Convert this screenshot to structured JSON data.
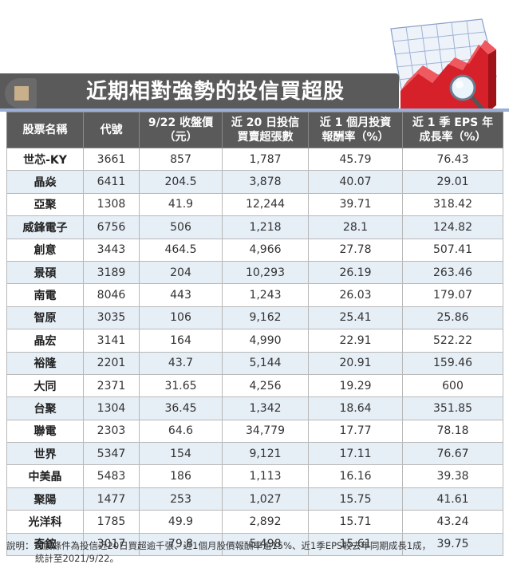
{
  "title": "近期相對強勢的投信買超股",
  "columns": [
    {
      "line1": "股票名稱",
      "line2": ""
    },
    {
      "line1": "代號",
      "line2": ""
    },
    {
      "line1": "9/22 收盤價",
      "line2": "（元）"
    },
    {
      "line1": "近 20 日投信",
      "line2": "買賣超張數"
    },
    {
      "line1": "近 1 個月投資",
      "line2": "報酬率（%）"
    },
    {
      "line1": "近 1 季 EPS 年",
      "line2": "成長率（%）"
    }
  ],
  "rows": [
    {
      "name": "世芯-KY",
      "code": "3661",
      "close": "857",
      "net": "1,787",
      "ret": "45.79",
      "eps": "76.43"
    },
    {
      "name": "晶焱",
      "code": "6411",
      "close": "204.5",
      "net": "3,878",
      "ret": "40.07",
      "eps": "29.01"
    },
    {
      "name": "亞聚",
      "code": "1308",
      "close": "41.9",
      "net": "12,244",
      "ret": "39.71",
      "eps": "318.42"
    },
    {
      "name": "威鋒電子",
      "code": "6756",
      "close": "506",
      "net": "1,218",
      "ret": "28.1",
      "eps": "124.82"
    },
    {
      "name": "創意",
      "code": "3443",
      "close": "464.5",
      "net": "4,966",
      "ret": "27.78",
      "eps": "507.41"
    },
    {
      "name": "景碩",
      "code": "3189",
      "close": "204",
      "net": "10,293",
      "ret": "26.19",
      "eps": "263.46"
    },
    {
      "name": "南電",
      "code": "8046",
      "close": "443",
      "net": "1,243",
      "ret": "26.03",
      "eps": "179.07"
    },
    {
      "name": "智原",
      "code": "3035",
      "close": "106",
      "net": "9,162",
      "ret": "25.41",
      "eps": "25.86"
    },
    {
      "name": "晶宏",
      "code": "3141",
      "close": "164",
      "net": "4,990",
      "ret": "22.91",
      "eps": "522.22"
    },
    {
      "name": "裕隆",
      "code": "2201",
      "close": "43.7",
      "net": "5,144",
      "ret": "20.91",
      "eps": "159.46"
    },
    {
      "name": "大同",
      "code": "2371",
      "close": "31.65",
      "net": "4,256",
      "ret": "19.29",
      "eps": "600"
    },
    {
      "name": "台聚",
      "code": "1304",
      "close": "36.45",
      "net": "1,342",
      "ret": "18.64",
      "eps": "351.85"
    },
    {
      "name": "聯電",
      "code": "2303",
      "close": "64.6",
      "net": "34,779",
      "ret": "17.77",
      "eps": "78.18"
    },
    {
      "name": "世界",
      "code": "5347",
      "close": "154",
      "net": "9,121",
      "ret": "17.11",
      "eps": "76.67"
    },
    {
      "name": "中美晶",
      "code": "5483",
      "close": "186",
      "net": "1,113",
      "ret": "16.16",
      "eps": "39.38"
    },
    {
      "name": "聚陽",
      "code": "1477",
      "close": "253",
      "net": "1,027",
      "ret": "15.75",
      "eps": "41.61"
    },
    {
      "name": "光洋科",
      "code": "1785",
      "close": "49.9",
      "net": "2,892",
      "ret": "15.71",
      "eps": "43.24"
    },
    {
      "name": "奇鋐",
      "code": "3017",
      "close": "79.8",
      "net": "5,498",
      "ret": "15.61",
      "eps": "39.75"
    }
  ],
  "note": {
    "label": "說明：",
    "text": "選股條件為投信近20日買超逾千張、近1個月股價報酬率逾15%、近1季EPS較去年同期成長1成，",
    "line2": "統計至2021/9/22。"
  },
  "colors": {
    "header_bg": "#5a5a5a",
    "row_alt_bg": "#e6eef6",
    "chart_red": "#d6202a",
    "banner_accent": "#c9b08a"
  }
}
